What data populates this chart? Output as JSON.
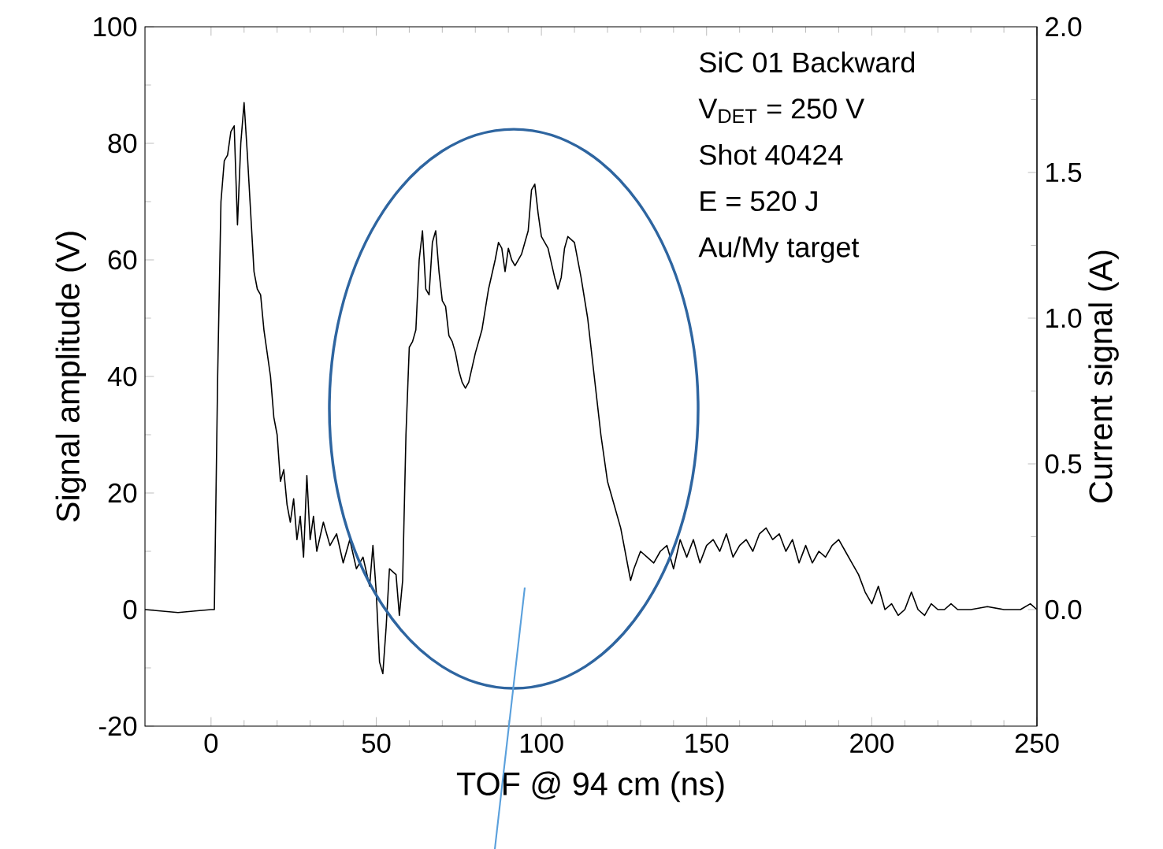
{
  "chart_data": {
    "type": "line",
    "xlabel": "TOF @ 94 cm  (ns)",
    "ylabel": "Signal amplitude (V)",
    "y2label": "Current signal  (A)",
    "annotations": [
      "SiC 01 Backward",
      "V$_{DET}$ = 250 V",
      "Shot 40424",
      "E = 520 J",
      "Au/My target"
    ],
    "x": [
      -20,
      -10,
      0,
      1,
      2,
      3,
      4,
      5,
      6,
      7,
      8,
      9,
      10,
      11,
      12,
      13,
      14,
      15,
      16,
      18,
      19,
      20,
      21,
      22,
      23,
      24,
      25,
      26,
      27,
      28,
      29,
      30,
      31,
      32,
      34,
      36,
      38,
      40,
      42,
      44,
      46,
      48,
      49,
      50,
      51,
      52,
      53,
      54,
      56,
      57,
      58,
      59,
      60,
      61,
      62,
      63,
      64,
      65,
      66,
      67,
      68,
      69,
      70,
      71,
      72,
      73,
      74,
      75,
      76,
      77,
      78,
      80,
      82,
      84,
      86,
      87,
      88,
      89,
      90,
      91,
      92,
      94,
      95,
      96,
      97,
      98,
      99,
      100,
      102,
      104,
      105,
      106,
      107,
      108,
      110,
      112,
      114,
      116,
      118,
      120,
      122,
      124,
      126,
      127,
      128,
      130,
      132,
      134,
      136,
      138,
      140,
      142,
      144,
      146,
      148,
      150,
      152,
      154,
      156,
      158,
      160,
      162,
      164,
      166,
      168,
      170,
      172,
      174,
      176,
      178,
      180,
      182,
      184,
      186,
      188,
      190,
      192,
      194,
      196,
      198,
      200,
      202,
      204,
      206,
      208,
      210,
      212,
      214,
      216,
      218,
      220,
      222,
      224,
      226,
      230,
      235,
      240,
      245,
      248,
      250
    ],
    "values": [
      0,
      -0.5,
      0,
      0,
      40,
      70,
      77,
      78,
      82,
      83,
      66,
      80,
      87,
      78,
      68,
      58,
      55,
      54,
      48,
      40,
      33,
      30,
      22,
      24,
      18,
      15,
      19,
      12,
      16,
      9,
      23,
      12,
      16,
      10,
      15,
      11,
      13,
      8,
      12,
      7,
      9,
      4,
      11,
      3,
      -9,
      -11,
      -3,
      7,
      6,
      -1,
      5,
      30,
      45,
      46,
      48,
      60,
      65,
      55,
      54,
      63,
      65,
      58,
      53,
      52,
      47,
      46,
      44,
      41,
      39,
      38,
      39,
      44,
      48,
      55,
      60,
      63,
      62,
      58,
      62,
      60,
      59,
      61,
      63,
      65,
      72,
      73,
      68,
      64,
      62,
      57,
      55,
      57,
      62,
      64,
      63,
      57,
      50,
      40,
      30,
      22,
      18,
      14,
      8,
      5,
      7,
      10,
      9,
      8,
      10,
      11,
      7,
      12,
      9,
      12,
      8,
      11,
      12,
      10,
      13,
      9,
      11,
      12,
      10,
      13,
      14,
      12,
      13,
      10,
      12,
      8,
      11,
      8,
      10,
      9,
      11,
      12,
      10,
      8,
      6,
      3,
      1,
      4,
      0,
      1,
      -1,
      0,
      3,
      0,
      -1,
      1,
      0,
      0,
      1,
      0,
      0,
      0.5,
      0,
      0,
      1,
      0
    ],
    "color": "#000000",
    "xlim": [
      -20,
      250
    ],
    "xticks": [
      0,
      50,
      100,
      150,
      200,
      250
    ],
    "ylim": [
      -20,
      100
    ],
    "yticks": [
      -20,
      0,
      20,
      40,
      60,
      80,
      100
    ],
    "y2lim": [
      -0.4,
      2.0
    ],
    "y2ticks": [
      {
        "value": 0,
        "label": "0.0"
      },
      {
        "value": 0.5,
        "label": "0.5"
      },
      {
        "value": 1,
        "label": "1.0"
      },
      {
        "value": 1.5,
        "label": "1.5"
      },
      {
        "value": 2,
        "label": "2.0"
      }
    ]
  }
}
